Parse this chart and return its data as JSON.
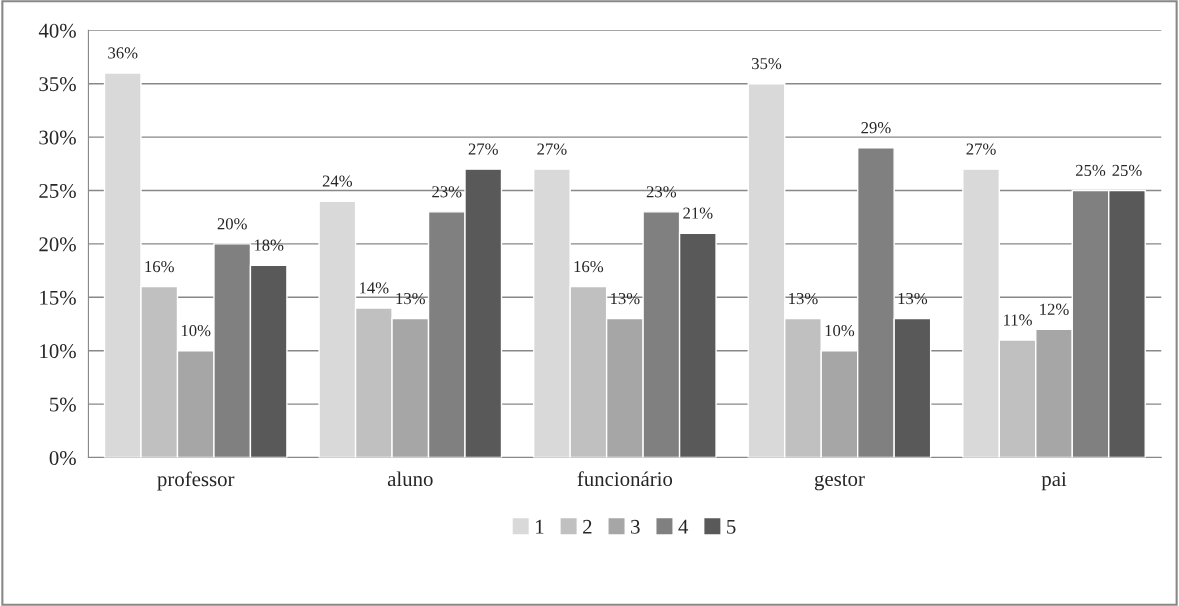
{
  "chart_data": {
    "type": "bar",
    "categories": [
      "professor",
      "aluno",
      "funcionário",
      "gestor",
      "pai"
    ],
    "series": [
      {
        "name": "1",
        "color": "#d9d9d9",
        "values": [
          36,
          24,
          27,
          35,
          27
        ],
        "value_labels": [
          "36%",
          "24%",
          "27%",
          "35%",
          "27%"
        ]
      },
      {
        "name": "2",
        "color": "#c0c0c0",
        "values": [
          16,
          14,
          16,
          13,
          11
        ],
        "value_labels": [
          "16%",
          "14%",
          "16%",
          "13%",
          "11%"
        ]
      },
      {
        "name": "3",
        "color": "#a6a6a6",
        "values": [
          10,
          13,
          13,
          10,
          12
        ],
        "value_labels": [
          "10%",
          "13%",
          "13%",
          "10%",
          "12%"
        ]
      },
      {
        "name": "4",
        "color": "#808080",
        "values": [
          20,
          23,
          23,
          29,
          25
        ],
        "value_labels": [
          "20%",
          "23%",
          "23%",
          "29%",
          "25%"
        ]
      },
      {
        "name": "5",
        "color": "#595959",
        "values": [
          18,
          27,
          21,
          13,
          25
        ],
        "value_labels": [
          "18%",
          "27%",
          "21%",
          "13%",
          "25%"
        ]
      }
    ],
    "ylim": [
      0,
      40
    ],
    "yticks": [
      {
        "value": 0,
        "label": "0%"
      },
      {
        "value": 5,
        "label": "5%"
      },
      {
        "value": 10,
        "label": "10%"
      },
      {
        "value": 15,
        "label": "15%"
      },
      {
        "value": 20,
        "label": "20%"
      },
      {
        "value": 25,
        "label": "25%"
      },
      {
        "value": 30,
        "label": "30%"
      },
      {
        "value": 35,
        "label": "35%"
      },
      {
        "value": 40,
        "label": "40%"
      }
    ],
    "grid": "y",
    "legend": "bottom"
  }
}
